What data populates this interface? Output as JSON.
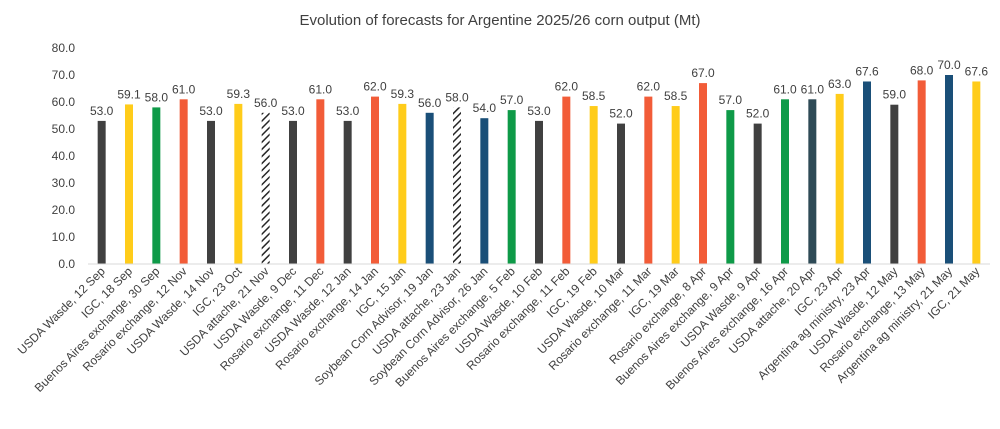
{
  "chart_data": {
    "type": "bar",
    "title": "Evolution of forecasts for Argentine 2025/26 corn output (Mt)",
    "xlabel": "",
    "ylabel": "",
    "ylim": [
      0,
      80
    ],
    "yticks": [
      "0.0",
      "10.0",
      "20.0",
      "30.0",
      "40.0",
      "50.0",
      "60.0",
      "70.0",
      "80.0"
    ],
    "grid": false,
    "legend": "none",
    "categories": [
      "USDA Wasde, 12 Sep",
      "IGC, 18 Sep",
      "Buenos Aires exchange, 30 Sep",
      "Rosario exchange, 12 Nov",
      "USDA Wasde, 14 Nov",
      "IGC, 23 Oct",
      "USDA attache, 21 Nov",
      "USDA Wasde, 9 Dec",
      "Rosario exchange, 11 Dec",
      "USDA Wasde, 12 Jan",
      "Rosario exchange, 14 Jan",
      "IGC, 15 Jan",
      "Soybean Corn Advisor, 19 Jan",
      "USDA attache, 23 Jan",
      "Soybean Corn Advisor, 26 Jan",
      "Buenos Aires exchange, 5 Feb",
      "USDA Wasde, 10 Feb",
      "Rosario exchange, 11 Feb",
      "IGC, 19 Feb",
      "USDA Wasde, 10 Mar",
      "Rosario exchange, 11 Mar",
      "IGC, 19 Mar",
      "Rosario exchange, 8 Apr",
      "Buenos Aires exchange, 9 Apr",
      "USDA Wasde, 9 Apr",
      "Buenos Aires exchange, 16 Apr",
      "USDA attache, 20 Apr",
      "IGC, 23 Apr",
      "Argentina ag ministry, 23 Apr",
      "USDA Wasde, 12 May",
      "Rosario exchange, 13 May",
      "Argentina ag ministry, 21 May",
      "IGC, 21 May"
    ],
    "values": [
      53.0,
      59.1,
      58.0,
      61.0,
      53.0,
      59.3,
      56.0,
      53.0,
      61.0,
      53.0,
      62.0,
      59.3,
      56.0,
      58.0,
      54.0,
      57.0,
      53.0,
      62.0,
      58.5,
      52.0,
      62.0,
      58.5,
      67.0,
      57.0,
      52.0,
      61.0,
      61.0,
      63.0,
      67.6,
      59.0,
      68.0,
      70.0,
      67.6
    ],
    "data_labels": [
      "53.0",
      "59.1",
      "58.0",
      "61.0",
      "53.0",
      "59.3",
      "56.0",
      "53.0",
      "61.0",
      "53.0",
      "62.0",
      "59.3",
      "56.0",
      "58.0",
      "54.0",
      "57.0",
      "53.0",
      "62.0",
      "58.5",
      "52.0",
      "62.0",
      "58.5",
      "67.0",
      "57.0",
      "52.0",
      "61.0",
      "61.0",
      "63.0",
      "67.6",
      "59.0",
      "68.0",
      "70.0",
      "67.6"
    ],
    "bar_colors": [
      "#404040",
      "#FFCC1A",
      "#0E9A48",
      "#F25C38",
      "#404040",
      "#FFCC1A",
      "hatch",
      "#404040",
      "#F25C38",
      "#404040",
      "#F25C38",
      "#FFCC1A",
      "#1A4F78",
      "hatch",
      "#1A4F78",
      "#0E9A48",
      "#404040",
      "#F25C38",
      "#FFCC1A",
      "#404040",
      "#F25C38",
      "#FFCC1A",
      "#F25C38",
      "#0E9A48",
      "#404040",
      "#0E9A48",
      "#2E4A56",
      "#FFCC1A",
      "#1A4F78",
      "#404040",
      "#F25C38",
      "#1A4F78",
      "#FFCC1A"
    ]
  }
}
